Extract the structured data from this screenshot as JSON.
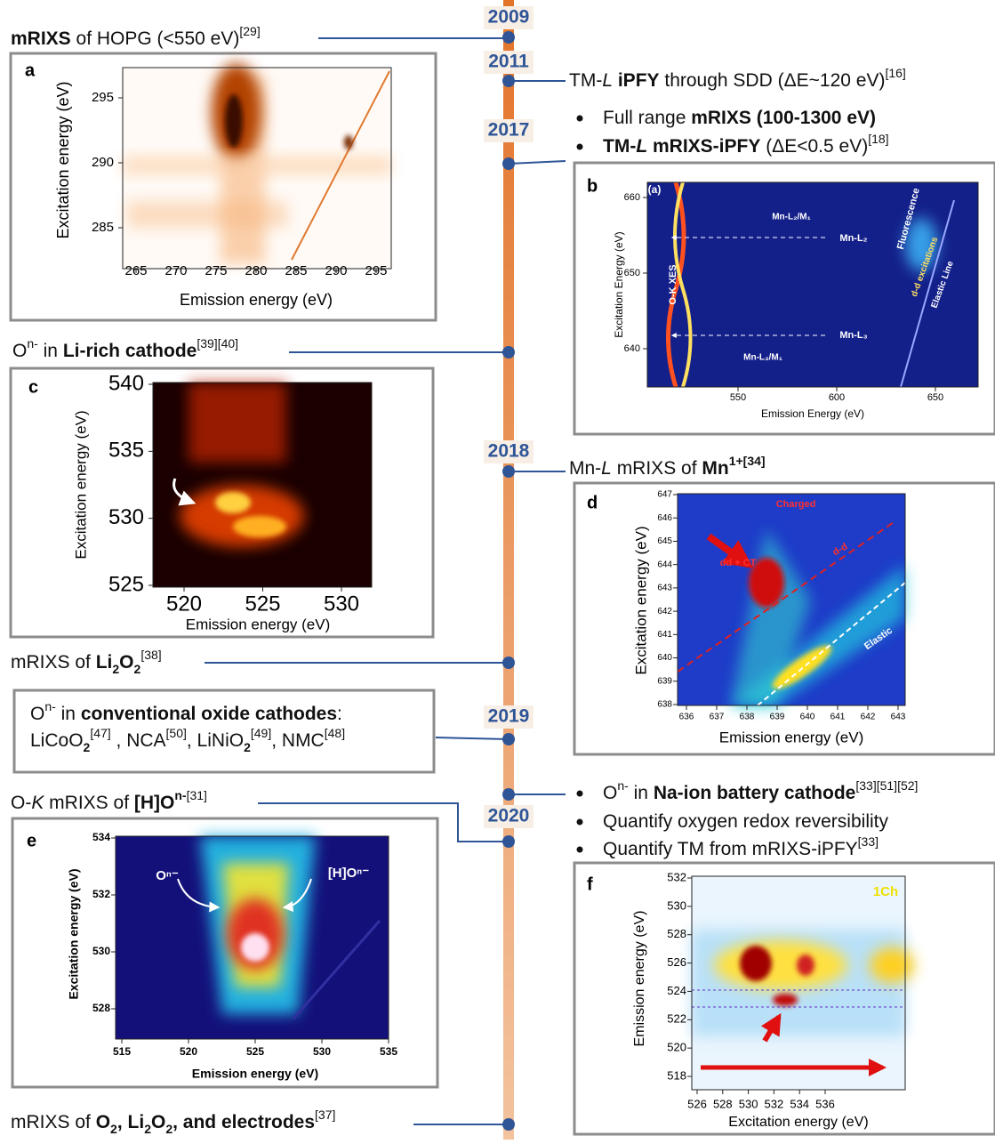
{
  "timeline": {
    "years": [
      "2009",
      "2011",
      "2017",
      "2018",
      "2019",
      "2020"
    ]
  },
  "entries": {
    "hopg": [
      "mRIXS",
      " of HOPG (<550 eV)",
      "[29]"
    ],
    "ipfy": [
      "TM-",
      "L",
      " iPFY",
      " through SDD (ΔE~120 eV)",
      "[16]"
    ],
    "full_range": [
      "Full range ",
      "mRIXS (100-1300 eV)"
    ],
    "tm_mrixs": [
      "TM-",
      "L",
      " mRIXS-iPFY",
      " (ΔE<0.5 eV)",
      "[18]"
    ],
    "li_rich": [
      "O",
      "n-",
      " in ",
      "Li-rich cathode",
      "[39][40]"
    ],
    "mn1": [
      "Mn-",
      "L",
      " mRIXS of ",
      "Mn",
      "1+[34]"
    ],
    "li2o2": [
      "mRIXS of ",
      "Li",
      "2",
      "O",
      "2",
      "[38]"
    ],
    "conventional": [
      "O",
      "n-",
      " in ",
      "conventional oxide cathodes",
      ":"
    ],
    "conventional_list": [
      "LiCoO",
      "2",
      "[47]",
      " , NCA",
      "[50]",
      ", LiNiO",
      "2",
      "[49]",
      ", NMC",
      "[48]"
    ],
    "na_ion": [
      "O",
      "n-",
      " in ",
      "Na-ion battery cathode",
      "[33][51][52]"
    ],
    "reversibility": [
      "Quantify oxygen redox reversibility"
    ],
    "quantify_tm": [
      "Quantify TM from mRIXS-iPFY",
      "[33]"
    ],
    "hok": [
      "O-",
      "K",
      " mRIXS of ",
      "[H]O",
      "n-",
      "[31]"
    ],
    "o2": [
      "mRIXS of ",
      "O",
      "2",
      ", Li",
      "2",
      "O",
      "2",
      ", and electrodes",
      "[37]"
    ]
  },
  "panels": [
    {
      "letter": "a",
      "xlabel": "Emission energy (eV)",
      "ylabel": "Excitation energy (eV)",
      "xticks": [
        "265",
        "270",
        "275",
        "280",
        "285",
        "290",
        "295"
      ],
      "yticks": [
        "295",
        "290",
        "285"
      ],
      "annotations": []
    },
    {
      "letter": "b",
      "xlabel": "Emission Energy (eV)",
      "ylabel": "Excitation Energy (eV)",
      "xticks": [
        "550",
        "600",
        "650"
      ],
      "yticks": [
        "660",
        "650",
        "640"
      ],
      "annotations": [
        "(a)",
        "O-K XES",
        "Mn-L₂/M₁",
        "Mn-L₂",
        "Mn-L₃",
        "Mn-L₃/M₁",
        "Fluorescence",
        "d-d excitations",
        "Elastic Line"
      ]
    },
    {
      "letter": "c",
      "xlabel": "Emission energy (eV)",
      "ylabel": "Excitation energy (eV)",
      "xticks": [
        "520",
        "525",
        "530"
      ],
      "yticks": [
        "540",
        "535",
        "530",
        "525"
      ],
      "annotations": []
    },
    {
      "letter": "d",
      "xlabel": "Emission energy (eV)",
      "ylabel": "Excitation energy (eV)",
      "xticks": [
        "636",
        "637",
        "638",
        "639",
        "640",
        "641",
        "642",
        "643"
      ],
      "yticks": [
        "647",
        "646",
        "645",
        "644",
        "643",
        "642",
        "641",
        "640",
        "639",
        "638"
      ],
      "annotations": [
        "Charged",
        "dd + CT",
        "d-d",
        "Elastic"
      ]
    },
    {
      "letter": "e",
      "xlabel": "Emission energy (eV)",
      "ylabel": "Excitation energy (eV)",
      "xticks": [
        "515",
        "520",
        "525",
        "530",
        "535"
      ],
      "yticks": [
        "534",
        "532",
        "530",
        "528"
      ],
      "annotations": [
        "Oⁿ⁻",
        "[H]Oⁿ⁻"
      ]
    },
    {
      "letter": "f",
      "xlabel": "Excitation energy (eV)",
      "ylabel": "Emission energy (eV)",
      "xticks": [
        "526",
        "528",
        "530",
        "532",
        "534",
        "536"
      ],
      "yticks": [
        "532",
        "530",
        "528",
        "526",
        "524",
        "522",
        "520",
        "518"
      ],
      "annotations": [
        "1Ch"
      ]
    }
  ]
}
